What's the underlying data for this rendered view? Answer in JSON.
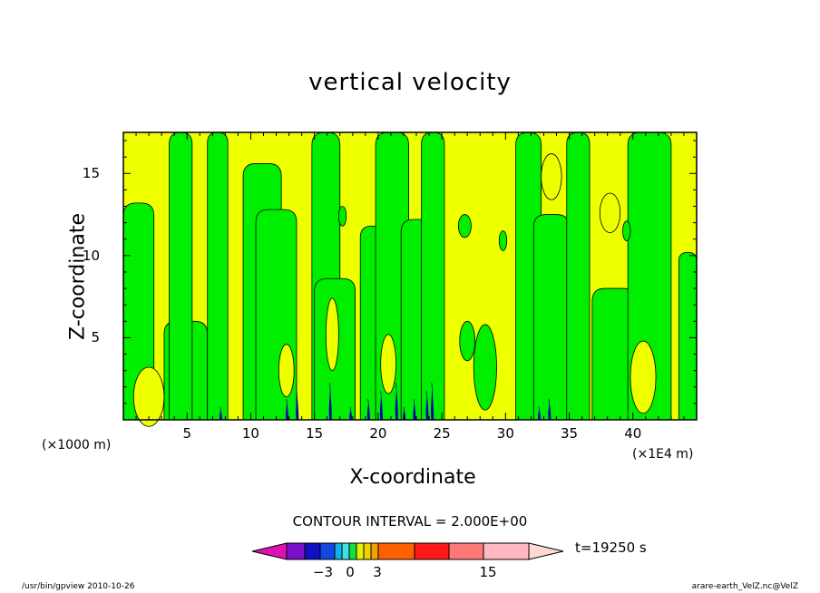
{
  "chart_data": {
    "type": "heatmap",
    "title": "vertical velocity",
    "xlabel": "X-coordinate",
    "ylabel": "Z-coordinate",
    "x_unit_left": "(×1000 m)",
    "x_unit_right": "(×1E4 m)",
    "xlim": [
      0,
      45
    ],
    "ylim": [
      0,
      17.5
    ],
    "x_ticks": [
      "5",
      "10",
      "15",
      "20",
      "25",
      "30",
      "35",
      "40"
    ],
    "y_ticks": [
      "5",
      "10",
      "15"
    ],
    "grid": false,
    "contour_interval_label": "CONTOUR INTERVAL = 2.000E+00",
    "time_label": "t=19250 s",
    "colorbar": {
      "tick_labels": [
        "−3",
        "0",
        "3",
        "15"
      ],
      "colors": [
        "#e010b0",
        "#7a10c8",
        "#1010c0",
        "#1048e0",
        "#10b0e8",
        "#40e0e0",
        "#10e040",
        "#e8f000",
        "#f0d000",
        "#f0a000",
        "#ff6000",
        "#ff1818",
        "#ff7878",
        "#ffb8c0",
        "#ffd8d0"
      ]
    },
    "field_colors": {
      "positive": "#eeff00",
      "negative": "#00ee00",
      "strong_negative": "#0000b0",
      "frame": "#000000"
    }
  },
  "footer": {
    "left": "/usr/bin/gpview   2010-10-26",
    "right": "arare-earth_VelZ.nc@VelZ"
  }
}
